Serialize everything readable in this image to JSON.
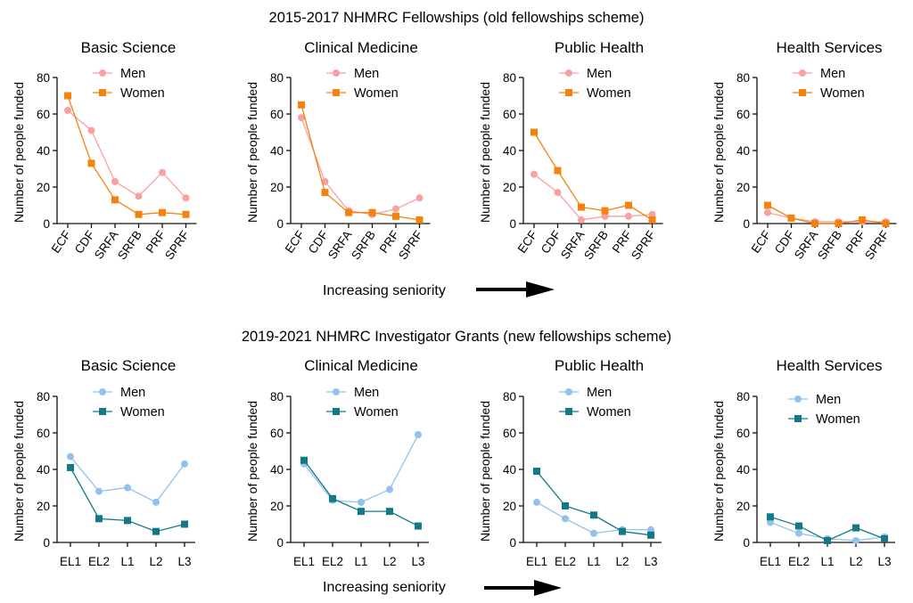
{
  "colors": {
    "men_old": "#f7a1a1",
    "women_old": "#f5820f",
    "men_new": "#92c1ee",
    "women_new": "#127a87",
    "axis": "#111111",
    "arrow": "#000000"
  },
  "seniority_label": "Increasing seniority",
  "chart_data": [
    {
      "section": "2015-2017 NHMRC Fellowships (old fellowships scheme)",
      "type": "line",
      "categories": [
        "ECF",
        "CDF",
        "SRFA",
        "SRFB",
        "PRF",
        "SPRF"
      ],
      "ylabel": "Number of people funded",
      "ylim": [
        0,
        80
      ],
      "yticks": [
        0,
        20,
        40,
        60,
        80
      ],
      "legend": "top-right",
      "panels": [
        {
          "title": "Basic Science",
          "series": [
            {
              "name": "Men",
              "values": [
                62,
                51,
                23,
                15,
                28,
                14
              ]
            },
            {
              "name": "Women",
              "values": [
                70,
                33,
                13,
                5,
                6,
                5
              ]
            }
          ]
        },
        {
          "title": "Clinical  Medicine",
          "series": [
            {
              "name": "Men",
              "values": [
                58,
                23,
                7,
                5,
                8,
                14
              ]
            },
            {
              "name": "Women",
              "values": [
                65,
                17,
                6,
                6,
                4,
                2
              ]
            }
          ]
        },
        {
          "title": "Public Health",
          "series": [
            {
              "name": "Men",
              "values": [
                27,
                17,
                2,
                4,
                4,
                5
              ]
            },
            {
              "name": "Women",
              "values": [
                50,
                29,
                9,
                7,
                10,
                2
              ]
            }
          ]
        },
        {
          "title": "Health Services",
          "series": [
            {
              "name": "Men",
              "values": [
                6,
                3,
                1,
                1,
                1,
                1
              ]
            },
            {
              "name": "Women",
              "values": [
                10,
                3,
                0,
                0,
                2,
                0
              ]
            }
          ]
        }
      ]
    },
    {
      "section": "2019-2021 NHMRC Investigator Grants (new fellowships scheme)",
      "type": "line",
      "categories": [
        "EL1",
        "EL2",
        "L1",
        "L2",
        "L3"
      ],
      "ylabel": "Number of people funded",
      "ylim": [
        0,
        80
      ],
      "yticks": [
        0,
        20,
        40,
        60,
        80
      ],
      "legend": "top-right",
      "panels": [
        {
          "title": "Basic Science",
          "series": [
            {
              "name": "Men",
              "values": [
                47,
                28,
                30,
                22,
                43
              ]
            },
            {
              "name": "Women",
              "values": [
                41,
                13,
                12,
                6,
                10
              ]
            }
          ]
        },
        {
          "title": "Clinical  Medicine",
          "series": [
            {
              "name": "Men",
              "values": [
                43,
                23,
                22,
                29,
                59
              ]
            },
            {
              "name": "Women",
              "values": [
                45,
                24,
                17,
                17,
                9
              ]
            }
          ]
        },
        {
          "title": "Public Health",
          "series": [
            {
              "name": "Men",
              "values": [
                22,
                13,
                5,
                7,
                7
              ]
            },
            {
              "name": "Women",
              "values": [
                39,
                20,
                15,
                6,
                4
              ]
            }
          ]
        },
        {
          "title": "Health Services",
          "series": [
            {
              "name": "Men",
              "values": [
                11,
                5,
                2,
                1,
                3
              ]
            },
            {
              "name": "Women",
              "values": [
                14,
                9,
                1,
                8,
                2
              ]
            }
          ]
        }
      ]
    }
  ]
}
